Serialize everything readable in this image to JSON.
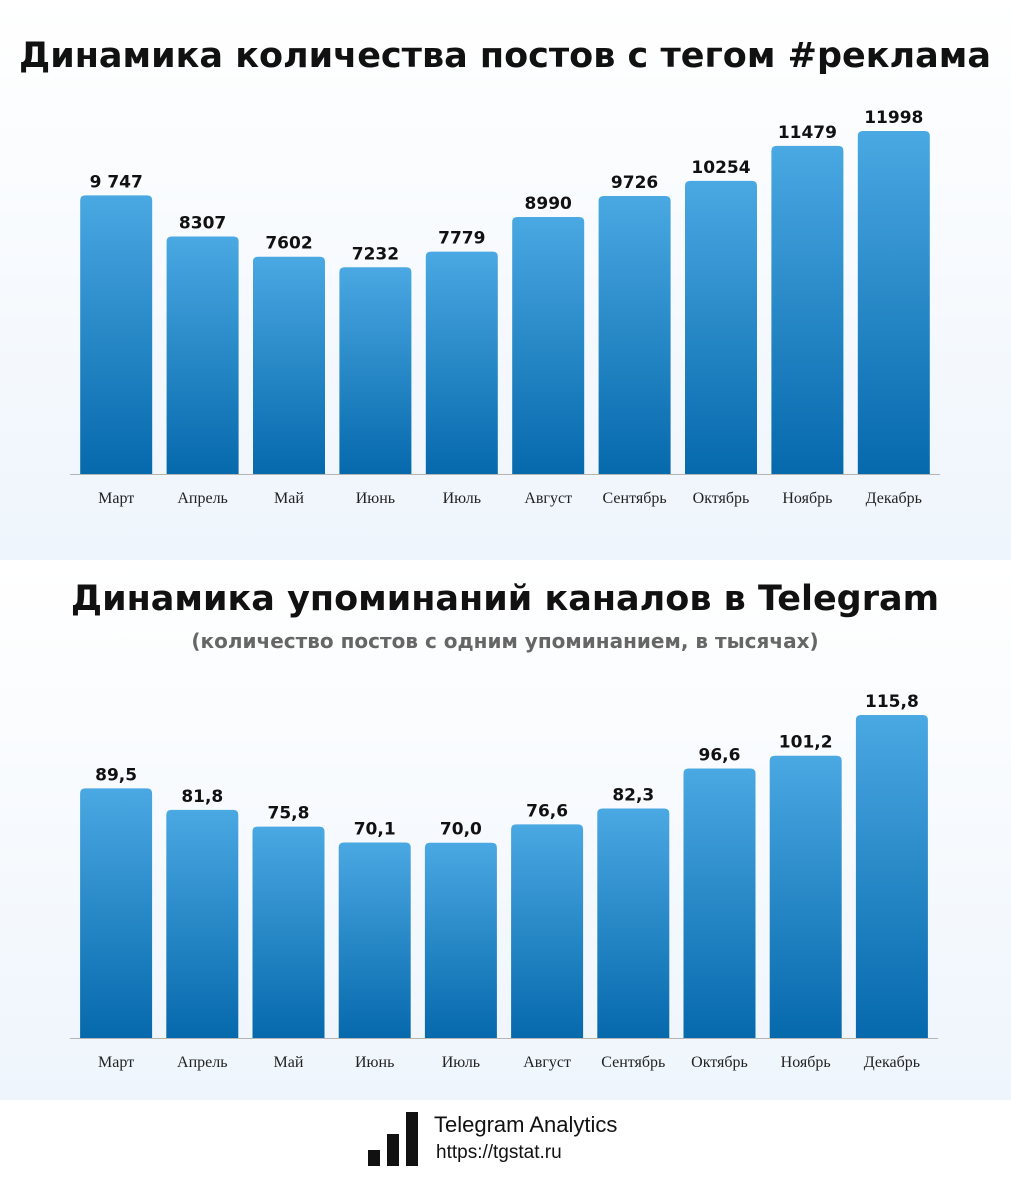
{
  "chart_data": [
    {
      "type": "bar",
      "title": "Динамика количества постов с тегом #реклама",
      "categories": [
        "Март",
        "Апрель",
        "Май",
        "Июнь",
        "Июль",
        "Август",
        "Сентябрь",
        "Октябрь",
        "Ноябрь",
        "Декабрь"
      ],
      "values": [
        9747,
        8307,
        7602,
        7232,
        7779,
        8990,
        9726,
        10254,
        11479,
        11998
      ],
      "value_labels": [
        "9 747",
        "8307",
        "7602",
        "7232",
        "7779",
        "8990",
        "9726",
        "10254",
        "11479",
        "11998"
      ],
      "ylim": [
        0,
        12000
      ],
      "grid": false,
      "colors": {
        "bar_top": "#4aa8e2",
        "bar_bottom": "#0669ac"
      }
    },
    {
      "type": "bar",
      "title": "Динамика упоминаний каналов в Telegram",
      "subtitle": "(количество постов с одним упоминанием, в тысячах)",
      "categories": [
        "Март",
        "Апрель",
        "Май",
        "Июнь",
        "Июль",
        "Август",
        "Сентябрь",
        "Октябрь",
        "Ноябрь",
        "Декабрь"
      ],
      "values": [
        89.5,
        81.8,
        75.8,
        70.1,
        70.0,
        76.6,
        82.3,
        96.6,
        101.2,
        115.8
      ],
      "value_labels": [
        "89,5",
        "81,8",
        "75,8",
        "70,1",
        "70,0",
        "76,6",
        "82,3",
        "96,6",
        "101,2",
        "115,8"
      ],
      "ylim": [
        0,
        115.8
      ],
      "grid": false,
      "colors": {
        "bar_top": "#4aa8e2",
        "bar_bottom": "#0669ac"
      }
    }
  ],
  "footer": {
    "logo_icon": "bar-chart-logo-icon",
    "brand": "Telegram Analytics",
    "url": "https://tgstat.ru"
  }
}
